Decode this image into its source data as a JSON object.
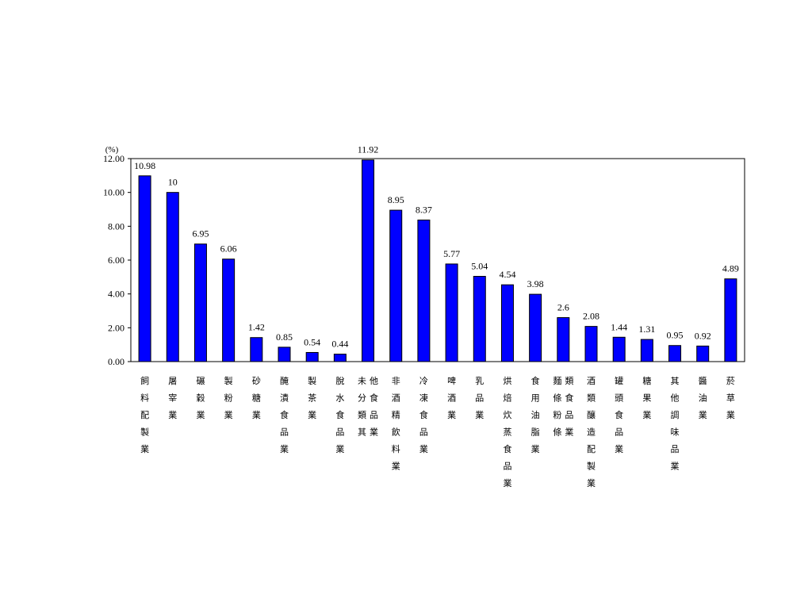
{
  "chart_data": {
    "type": "bar",
    "unit_label": "(%)",
    "ylim": [
      0,
      12
    ],
    "yticks": [
      "0.00",
      "2.00",
      "4.00",
      "6.00",
      "8.00",
      "10.00",
      "12.00"
    ],
    "grid": false,
    "bar_color": "#0000ff",
    "categories": [
      "飼料配製業",
      "屠宰業",
      "碾穀業",
      "製粉業",
      "砂糖業",
      "醃漬食品業",
      "製茶業",
      "脫水食品業",
      "未分類其他食品業",
      "非酒精飲料業",
      "冷凍食品業",
      "啤酒業",
      "乳品業",
      "烘焙炊蒸食品業",
      "食用油脂業",
      "麵條粉條類食品業",
      "酒類釀造配製業",
      "罐頭食品業",
      "糖果業",
      "其他調味品業",
      "醬油業",
      "菸草業"
    ],
    "values": [
      10.98,
      10,
      6.95,
      6.06,
      1.42,
      0.85,
      0.54,
      0.44,
      11.92,
      8.95,
      8.37,
      5.77,
      5.04,
      4.54,
      3.98,
      2.6,
      2.08,
      1.44,
      1.31,
      0.95,
      0.92,
      4.89
    ],
    "data_labels": [
      "10.98",
      "10",
      "6.95",
      "6.06",
      "1.42",
      "0.85",
      "0.54",
      "0.44",
      "11.92",
      "8.95",
      "8.37",
      "5.77",
      "5.04",
      "4.54",
      "3.98",
      "2.6",
      "2.08",
      "1.44",
      "1.31",
      "0.95",
      "0.92",
      "4.89"
    ]
  }
}
